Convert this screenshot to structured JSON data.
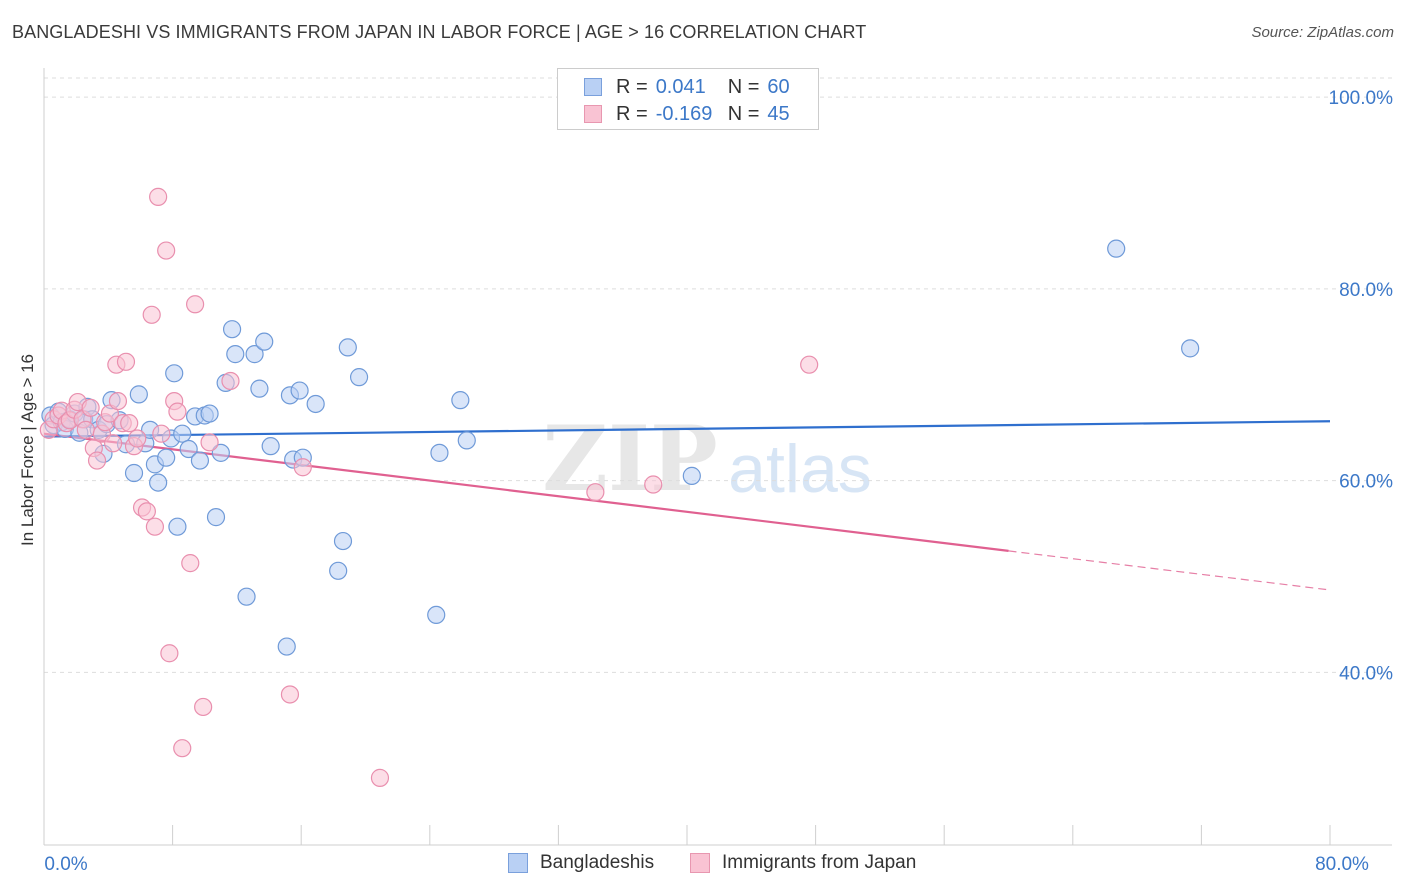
{
  "title": "BANGLADESHI VS IMMIGRANTS FROM JAPAN IN LABOR FORCE | AGE > 16 CORRELATION CHART",
  "source": "Source: ZipAtlas.com",
  "watermark": {
    "zip": "ZIP",
    "atlas": "atlas"
  },
  "legend_top": [
    {
      "r_label": "R =",
      "r_value": "0.041",
      "n_label": "N =",
      "n_value": "60"
    },
    {
      "r_label": "R =",
      "r_value": "-0.169",
      "n_label": "N =",
      "n_value": "45"
    }
  ],
  "legend_bottom": [
    "Bangladeshis",
    "Immigrants from Japan"
  ],
  "colors": {
    "blue_fill": "#b9d0f4",
    "blue_stroke": "#6f9ad8",
    "blue_line": "#2f6fce",
    "pink_fill": "#f9c3d3",
    "pink_stroke": "#e98fae",
    "pink_line": "#e06090",
    "tick_label": "#3c78c8",
    "grid": "#dddddd"
  },
  "chart_data": {
    "type": "scatter",
    "title": "BANGLADESHI VS IMMIGRANTS FROM JAPAN IN LABOR FORCE | AGE > 16 CORRELATION CHART",
    "xlabel": "",
    "ylabel": "In Labor Force | Age > 16",
    "xlim": [
      0,
      80
    ],
    "ylim": [
      22,
      102
    ],
    "x_tick_labels": [
      {
        "value": 0,
        "label": "0.0%"
      },
      {
        "value": 80,
        "label": "80.0%"
      }
    ],
    "x_minor_ticks": [
      0,
      8,
      16,
      24,
      32,
      40,
      48,
      56,
      64,
      72,
      80
    ],
    "y_ticks": [
      {
        "value": 40,
        "label": "40.0%"
      },
      {
        "value": 60,
        "label": "60.0%"
      },
      {
        "value": 80,
        "label": "80.0%"
      },
      {
        "value": 100,
        "label": "100.0%"
      }
    ],
    "grid": true,
    "series": [
      {
        "name": "Bangladeshis",
        "color": "blue",
        "r": 0.041,
        "n": 60,
        "trend": {
          "x0": 0,
          "y0": 64.6,
          "x1": 80,
          "y1": 66.2,
          "dashed_from": null
        },
        "points": [
          [
            0.4,
            66.8
          ],
          [
            0.6,
            65.8
          ],
          [
            0.9,
            67.2
          ],
          [
            1.1,
            66.1
          ],
          [
            1.3,
            65.4
          ],
          [
            1.6,
            66.4
          ],
          [
            1.9,
            67.0
          ],
          [
            2.2,
            65.0
          ],
          [
            2.5,
            66.4
          ],
          [
            2.7,
            67.7
          ],
          [
            3.0,
            66.4
          ],
          [
            3.4,
            65.3
          ],
          [
            3.7,
            62.8
          ],
          [
            3.9,
            65.9
          ],
          [
            4.2,
            68.4
          ],
          [
            4.7,
            66.3
          ],
          [
            5.1,
            63.8
          ],
          [
            5.6,
            60.8
          ],
          [
            5.9,
            69.0
          ],
          [
            6.3,
            63.9
          ],
          [
            6.6,
            65.3
          ],
          [
            6.9,
            61.7
          ],
          [
            7.1,
            59.8
          ],
          [
            7.6,
            62.4
          ],
          [
            7.9,
            64.4
          ],
          [
            8.1,
            71.2
          ],
          [
            8.3,
            55.2
          ],
          [
            8.6,
            64.9
          ],
          [
            9.0,
            63.3
          ],
          [
            9.4,
            66.7
          ],
          [
            9.7,
            62.1
          ],
          [
            10.0,
            66.8
          ],
          [
            10.3,
            67.0
          ],
          [
            10.7,
            56.2
          ],
          [
            11.0,
            62.9
          ],
          [
            11.3,
            70.2
          ],
          [
            11.7,
            75.8
          ],
          [
            11.9,
            73.2
          ],
          [
            12.6,
            47.9
          ],
          [
            13.1,
            73.2
          ],
          [
            13.4,
            69.6
          ],
          [
            13.7,
            74.5
          ],
          [
            14.1,
            63.6
          ],
          [
            15.1,
            42.7
          ],
          [
            15.3,
            68.9
          ],
          [
            15.5,
            62.2
          ],
          [
            15.9,
            69.4
          ],
          [
            16.1,
            62.4
          ],
          [
            16.9,
            68.0
          ],
          [
            18.3,
            50.6
          ],
          [
            18.6,
            53.7
          ],
          [
            18.9,
            73.9
          ],
          [
            19.6,
            70.8
          ],
          [
            24.4,
            46.0
          ],
          [
            24.6,
            62.9
          ],
          [
            25.9,
            68.4
          ],
          [
            26.3,
            64.2
          ],
          [
            40.3,
            60.5
          ],
          [
            66.7,
            84.2
          ],
          [
            71.3,
            73.8
          ]
        ]
      },
      {
        "name": "Immigrants from Japan",
        "color": "pink",
        "r": -0.169,
        "n": 45,
        "trend": {
          "x0": 0,
          "y0": 64.9,
          "x1": 80,
          "y1": 48.6,
          "dashed_from": 60.0
        },
        "points": [
          [
            0.3,
            65.3
          ],
          [
            0.6,
            66.4
          ],
          [
            0.9,
            66.8
          ],
          [
            1.1,
            67.3
          ],
          [
            1.4,
            66.0
          ],
          [
            1.6,
            66.3
          ],
          [
            1.9,
            67.4
          ],
          [
            2.1,
            68.2
          ],
          [
            2.4,
            66.4
          ],
          [
            2.6,
            65.3
          ],
          [
            2.9,
            67.6
          ],
          [
            3.1,
            63.4
          ],
          [
            3.3,
            62.1
          ],
          [
            3.6,
            64.9
          ],
          [
            3.8,
            66.1
          ],
          [
            4.1,
            67.0
          ],
          [
            4.3,
            63.9
          ],
          [
            4.5,
            72.1
          ],
          [
            4.6,
            68.3
          ],
          [
            4.9,
            66.0
          ],
          [
            5.1,
            72.4
          ],
          [
            5.3,
            66.0
          ],
          [
            5.6,
            63.6
          ],
          [
            5.8,
            64.4
          ],
          [
            6.1,
            57.2
          ],
          [
            6.4,
            56.8
          ],
          [
            6.7,
            77.3
          ],
          [
            6.9,
            55.2
          ],
          [
            7.1,
            89.6
          ],
          [
            7.3,
            64.9
          ],
          [
            7.6,
            84.0
          ],
          [
            7.8,
            42.0
          ],
          [
            8.1,
            68.3
          ],
          [
            8.3,
            67.2
          ],
          [
            8.6,
            32.1
          ],
          [
            9.1,
            51.4
          ],
          [
            9.4,
            78.4
          ],
          [
            9.9,
            36.4
          ],
          [
            10.3,
            64.0
          ],
          [
            11.6,
            70.4
          ],
          [
            15.3,
            37.7
          ],
          [
            16.1,
            61.4
          ],
          [
            20.9,
            29.0
          ],
          [
            34.3,
            58.8
          ],
          [
            37.9,
            59.6
          ],
          [
            47.6,
            72.1
          ]
        ]
      }
    ]
  }
}
